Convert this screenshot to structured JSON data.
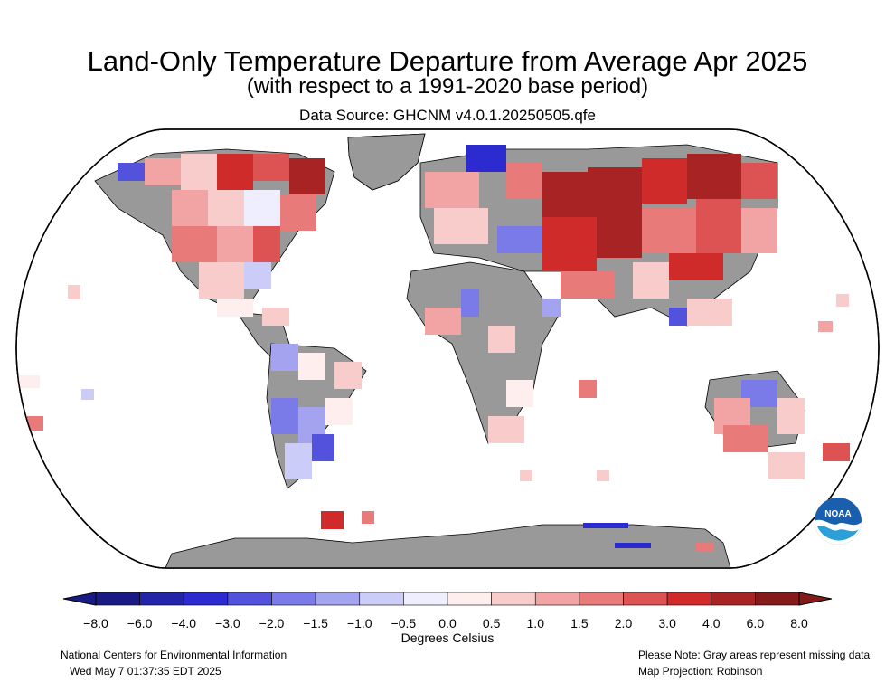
{
  "header": {
    "title": "Land-Only Temperature Departure from Average Apr 2025",
    "subtitle": "(with respect to a 1991-2020 base period)",
    "source": "Data Source: GHCNM v4.0.1.20250505.qfe"
  },
  "colors": {
    "missing": "#999999",
    "land_outline": "#000000",
    "scale": [
      "#1a1a85",
      "#2424a8",
      "#2b2bd0",
      "#5252dd",
      "#7a7ae8",
      "#a3a3f0",
      "#ccccf8",
      "#eeeeff",
      "#ffeeee",
      "#f9cccc",
      "#f2a3a3",
      "#e87a7a",
      "#dd5252",
      "#d02b2b",
      "#a82424",
      "#851a1a"
    ]
  },
  "legend": {
    "ticks": [
      "−8.0",
      "−6.0",
      "−4.0",
      "−3.0",
      "−2.0",
      "−1.5",
      "−1.0",
      "−0.5",
      "0.0",
      "0.5",
      "1.0",
      "1.5",
      "2.0",
      "3.0",
      "4.0",
      "6.0",
      "8.0"
    ],
    "title": "Degrees Celsius"
  },
  "logo": {
    "text": "NOAA",
    "icon": "noaa-logo-icon"
  },
  "footer": {
    "left_line1": "National Centers for Environmental Information",
    "left_line2": "Wed May  7 01:37:35 EDT 2025",
    "right_line1": "Please Note: Gray areas represent missing data",
    "right_line2": "Map Projection: Robinson"
  }
}
